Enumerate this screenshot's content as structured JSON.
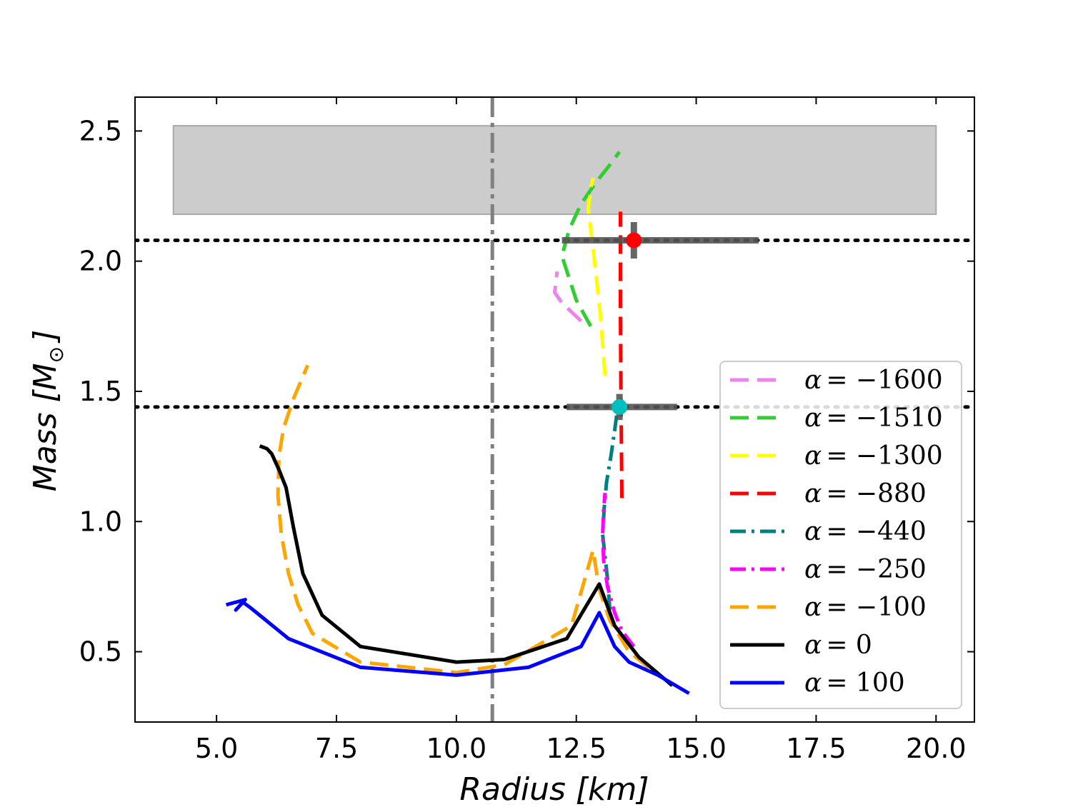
{
  "chart_data": {
    "type": "line",
    "title": "",
    "xlabel": "Radius [km]",
    "ylabel_text": "Mass [M",
    "ylabel_sub": "⊙",
    "ylabel_close": "]",
    "xlim": [
      3.3,
      20.8
    ],
    "ylim": [
      0.23,
      2.63
    ],
    "xticks": [
      5.0,
      7.5,
      10.0,
      12.5,
      15.0,
      17.5,
      20.0
    ],
    "xtick_labels": [
      "5.0",
      "7.5",
      "10.0",
      "12.5",
      "15.0",
      "17.5",
      "20.0"
    ],
    "yticks": [
      0.5,
      1.0,
      1.5,
      2.0,
      2.5
    ],
    "ytick_labels": [
      "0.5",
      "1.0",
      "1.5",
      "2.0",
      "2.5"
    ],
    "grid": false,
    "legend_position": "lower-right",
    "shaded_band": {
      "x": [
        4.1,
        20.0
      ],
      "y": [
        2.18,
        2.52
      ],
      "color": "#cccccc"
    },
    "vertical_reference": {
      "x": 10.75,
      "color": "#808080",
      "style": "dashdot"
    },
    "horizontal_references": [
      {
        "y": 2.08,
        "color": "#000000",
        "style": "dotted"
      },
      {
        "y": 1.44,
        "color": "#000000",
        "style": "dotted"
      }
    ],
    "observations": [
      {
        "x": 13.7,
        "y": 2.08,
        "xerr": [
          12.2,
          16.3
        ],
        "yerr": [
          2.01,
          2.15
        ],
        "color": "#ff0000"
      },
      {
        "x": 13.4,
        "y": 1.44,
        "xerr": [
          12.3,
          14.6
        ],
        "yerr": [
          1.39,
          1.49
        ],
        "color": "#00bfbf"
      }
    ],
    "series": [
      {
        "name": "α = −1600",
        "label_alpha": "α",
        "label_value": "= −1600",
        "color": "#ee82ee",
        "dash": "dashed",
        "x": [
          12.6,
          12.2,
          12.05,
          12.1
        ],
        "y": [
          1.77,
          1.84,
          1.88,
          1.96
        ]
      },
      {
        "name": "α = −1510",
        "label_alpha": "α",
        "label_value": "= −1510",
        "color": "#32cd32",
        "dash": "dashed",
        "x": [
          12.8,
          12.5,
          12.2,
          12.35,
          12.6,
          12.9,
          13.2,
          13.4
        ],
        "y": [
          1.75,
          1.85,
          2.02,
          2.12,
          2.22,
          2.3,
          2.37,
          2.42
        ]
      },
      {
        "name": "α = −1300",
        "label_alpha": "α",
        "label_value": "= −1300",
        "color": "#ffff00",
        "dash": "dashed",
        "x": [
          13.1,
          13.0,
          12.85,
          12.75,
          12.8,
          12.85
        ],
        "y": [
          1.56,
          1.8,
          2.05,
          2.2,
          2.28,
          2.32
        ]
      },
      {
        "name": "α = −880",
        "label_alpha": "α",
        "label_value": "= −880",
        "color": "#ff0000",
        "dash": "dashed",
        "x": [
          13.45,
          13.43,
          13.42,
          13.42,
          13.42
        ],
        "y": [
          1.09,
          1.5,
          1.8,
          2.05,
          2.19
        ]
      },
      {
        "name": "α = −440",
        "label_alpha": "α",
        "label_value": "= −440",
        "color": "#008080",
        "dash": "dashdot",
        "x": [
          13.2,
          13.15,
          13.05,
          13.08,
          13.13,
          13.22,
          13.3,
          13.35
        ],
        "y": [
          0.66,
          0.78,
          0.95,
          1.05,
          1.15,
          1.25,
          1.35,
          1.42
        ]
      },
      {
        "name": "α = −250",
        "label_alpha": "α",
        "label_value": "= −250",
        "color": "#ff00ff",
        "dash": "dashdot",
        "x": [
          13.7,
          13.45,
          13.3,
          13.15,
          13.07,
          13.05,
          13.07,
          13.1
        ],
        "y": [
          0.52,
          0.58,
          0.65,
          0.75,
          0.85,
          0.95,
          1.05,
          1.11
        ]
      },
      {
        "name": "α = −100",
        "label_alpha": "α",
        "label_value": "= −100",
        "color": "#ffa500",
        "dash": "dashed",
        "x": [
          14.0,
          13.6,
          13.2,
          12.98,
          12.85,
          12.4,
          11.0,
          10.0,
          8.0,
          7.0,
          6.7,
          6.5,
          6.35,
          6.28,
          6.3,
          6.4,
          6.6,
          6.9
        ],
        "y": [
          0.44,
          0.5,
          0.62,
          0.74,
          0.89,
          0.6,
          0.45,
          0.42,
          0.46,
          0.57,
          0.68,
          0.8,
          0.95,
          1.1,
          1.25,
          1.36,
          1.47,
          1.6
        ]
      },
      {
        "name": "α = 0",
        "label_alpha": "α",
        "label_value": "= 0",
        "color": "#000000",
        "dash": "solid",
        "x": [
          14.5,
          13.8,
          13.3,
          12.98,
          12.85,
          12.3,
          11.0,
          10.0,
          8.0,
          7.2,
          6.8,
          6.6,
          6.45,
          6.3,
          6.15,
          6.05,
          5.9
        ],
        "y": [
          0.37,
          0.48,
          0.6,
          0.76,
          0.72,
          0.55,
          0.47,
          0.46,
          0.52,
          0.64,
          0.8,
          0.98,
          1.13,
          1.2,
          1.26,
          1.28,
          1.29
        ]
      },
      {
        "name": "α = 100",
        "label_alpha": "α",
        "label_value": "= 100",
        "color": "#0000ff",
        "dash": "solid",
        "x": [
          14.85,
          14.2,
          13.6,
          13.3,
          12.98,
          12.6,
          11.5,
          10.0,
          8.0,
          6.5,
          5.9,
          5.7,
          5.55,
          5.4,
          5.6,
          5.2
        ],
        "y": [
          0.34,
          0.41,
          0.46,
          0.52,
          0.65,
          0.52,
          0.44,
          0.41,
          0.44,
          0.55,
          0.64,
          0.67,
          0.69,
          0.66,
          0.7,
          0.68
        ]
      }
    ]
  }
}
